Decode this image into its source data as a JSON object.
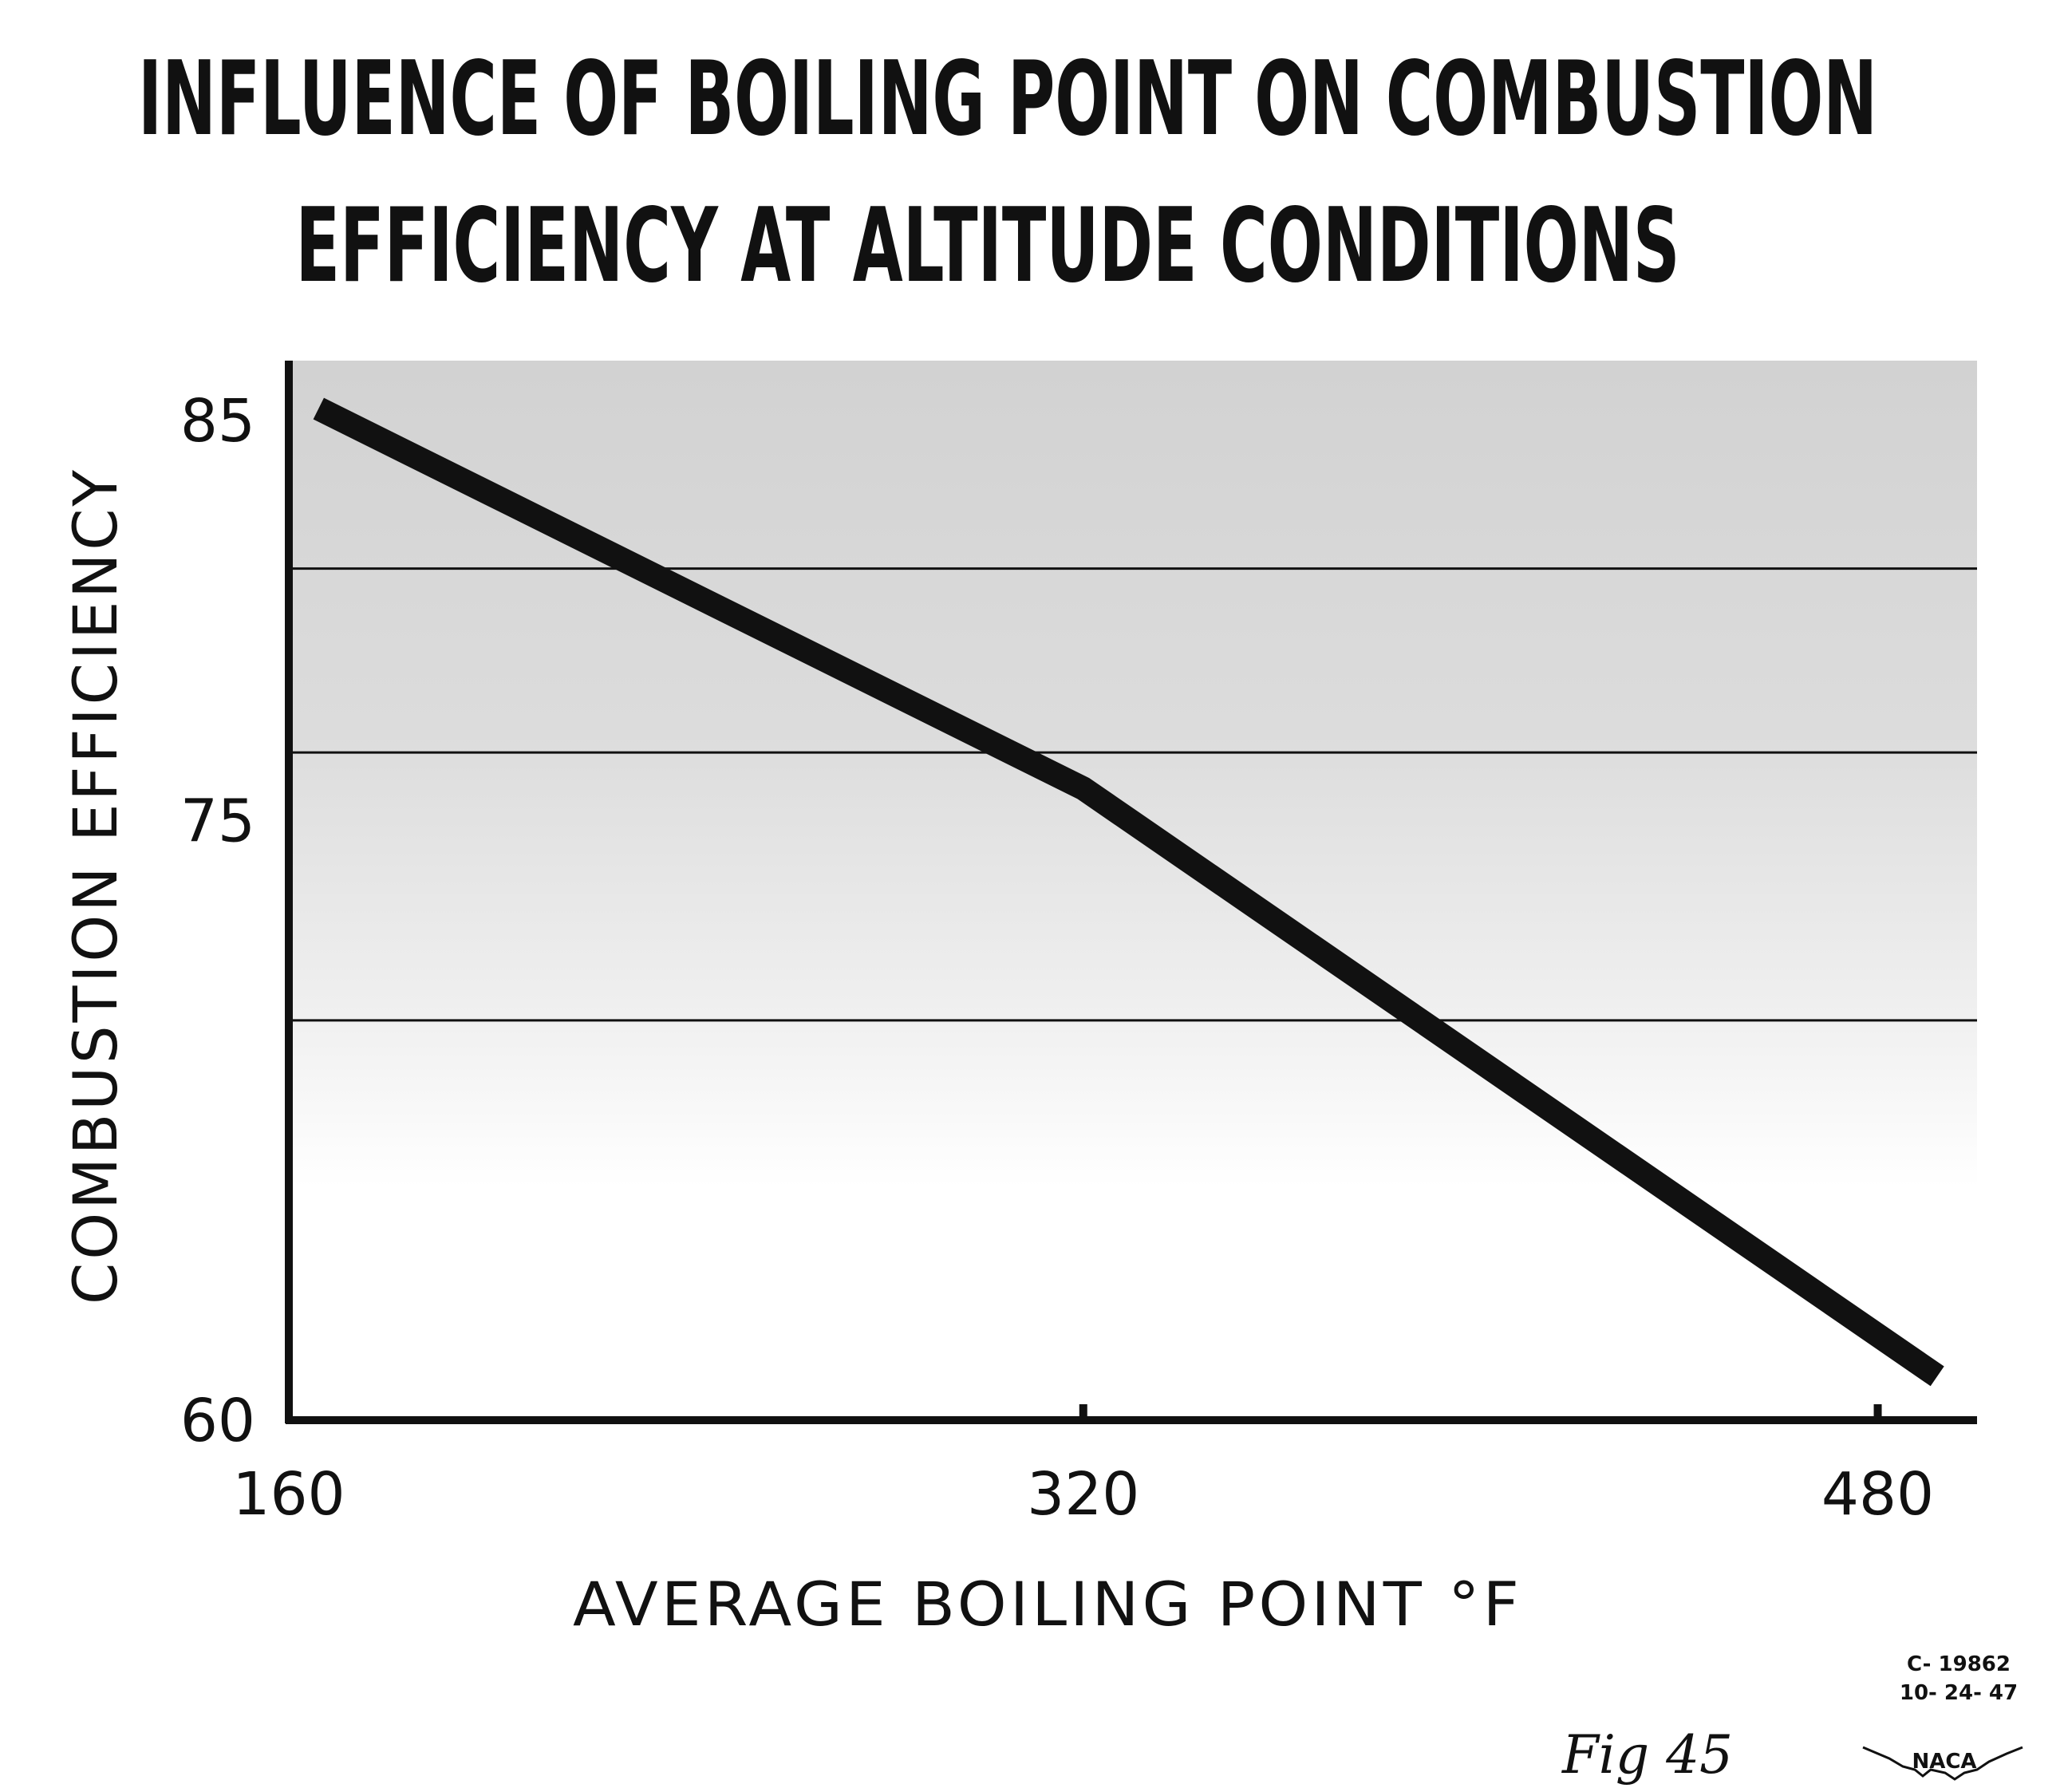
{
  "chart_data": {
    "type": "line",
    "title": [
      "INFLUENCE OF BOILING POINT ON COMBUSTION",
      "EFFICIENCY AT ALTITUDE CONDITIONS"
    ],
    "xlabel": "AVERAGE BOILING POINT °F",
    "ylabel": "COMBUSTION EFFICIENCY",
    "xlim": [
      160,
      500
    ],
    "ylim": [
      60,
      86.5
    ],
    "x_ticks": [
      160,
      320,
      480
    ],
    "y_ticks": [
      60,
      75,
      85
    ],
    "gridlines_y": [
      70,
      76.7,
      81.3
    ],
    "grid": true,
    "series": [
      {
        "values": [
          {
            "x": 166,
            "y": 85.3
          },
          {
            "x": 320,
            "y": 75.8
          },
          {
            "x": 492,
            "y": 61.1
          }
        ]
      }
    ]
  },
  "annotations": {
    "stamp_code": "C- 19862",
    "stamp_date": "10- 24- 47",
    "figure_note": "Fig 45",
    "logo_text": "NACA"
  },
  "colors": {
    "ink": "#111111",
    "plot_background_top": "#d6d6d6",
    "plot_background_bottom": "#ffffff"
  }
}
